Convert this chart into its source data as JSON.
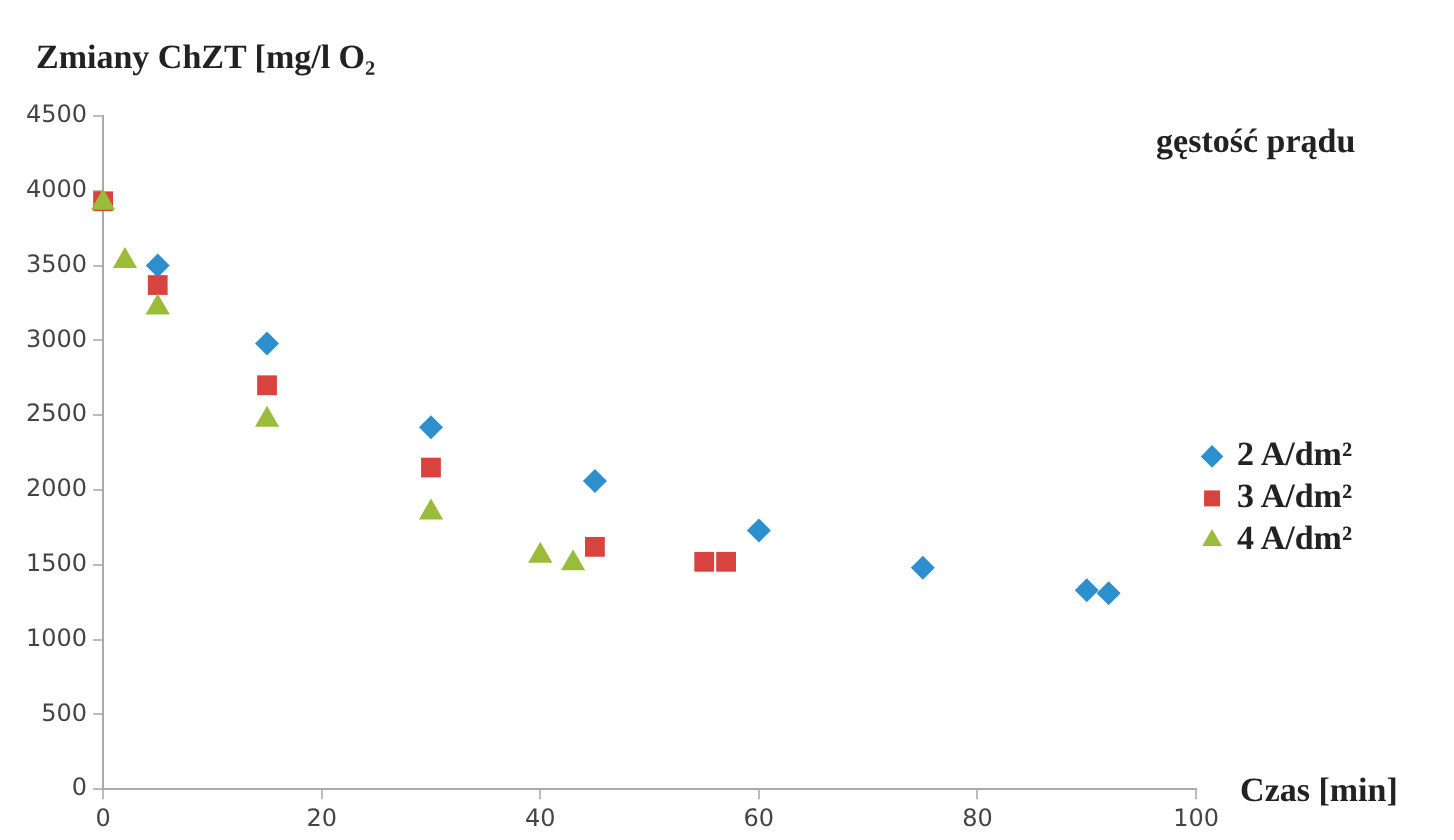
{
  "chart_data": {
    "type": "scatter",
    "ylabel": "Zmiany ChZT [mg/l O₂",
    "xlabel": "Czas [min]",
    "legend_title": "gęstość prądu",
    "series": [
      {
        "name": "2 A/dm²",
        "color": "#2e8fce",
        "marker": "diamond",
        "x": [
          5,
          15,
          30,
          45,
          60,
          75,
          90,
          92
        ],
        "values": [
          3500,
          2980,
          2420,
          2060,
          1730,
          1480,
          1330,
          1310
        ]
      },
      {
        "name": "3 A/dm²",
        "color": "#d9433f",
        "marker": "square",
        "x": [
          0,
          5,
          15,
          30,
          45,
          55,
          57
        ],
        "values": [
          3930,
          3370,
          2700,
          2150,
          1620,
          1520,
          1520
        ]
      },
      {
        "name": "4 A/dm²",
        "color": "#9bbb3b",
        "marker": "triangle",
        "x": [
          0,
          2,
          5,
          15,
          30,
          40,
          43
        ],
        "values": [
          3920,
          3530,
          3220,
          2470,
          1850,
          1560,
          1510
        ]
      }
    ],
    "xlim": [
      0,
      100
    ],
    "xticks": [
      0,
      20,
      40,
      60,
      80,
      100
    ],
    "ylim": [
      0,
      4500
    ],
    "yticks": [
      0,
      500,
      1000,
      1500,
      2000,
      2500,
      3000,
      3500,
      4000,
      4500
    ],
    "grid": false,
    "legend": "right"
  }
}
